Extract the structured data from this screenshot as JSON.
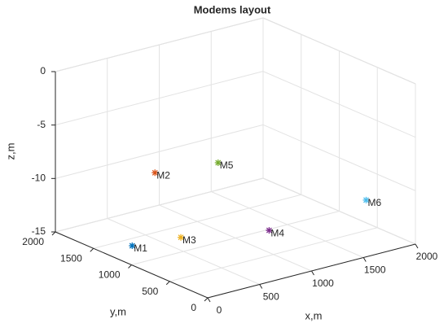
{
  "chart_data": {
    "type": "scatter3d",
    "title": "Modems layout",
    "xlabel": "x,m",
    "ylabel": "y,m",
    "zlabel": "z,m",
    "xlim": [
      0,
      2000
    ],
    "ylim": [
      0,
      2000
    ],
    "zlim": [
      -15,
      0
    ],
    "xticks": [
      0,
      500,
      1000,
      1500,
      2000
    ],
    "yticks": [
      0,
      500,
      1000,
      1500,
      2000
    ],
    "zticks": [
      -15,
      -10,
      -5,
      0
    ],
    "grid": true,
    "series": [
      {
        "name": "M1",
        "color": "#0072BD",
        "x": [
          270
        ],
        "y": [
          1360
        ],
        "z": [
          -15
        ]
      },
      {
        "name": "M2",
        "color": "#D95319",
        "x": [
          680
        ],
        "y": [
          1620
        ],
        "z": [
          -10
        ]
      },
      {
        "name": "M3",
        "color": "#EDB120",
        "x": [
          680
        ],
        "y": [
          1280
        ],
        "z": [
          -15
        ]
      },
      {
        "name": "M4",
        "color": "#7E2F8E",
        "x": [
          1310
        ],
        "y": [
          980
        ],
        "z": [
          -15
        ]
      },
      {
        "name": "M5",
        "color": "#77AC30",
        "x": [
          1200
        ],
        "y": [
          1500
        ],
        "z": [
          -10
        ]
      },
      {
        "name": "M6",
        "color": "#4DBEEE",
        "x": [
          1870
        ],
        "y": [
          470
        ],
        "z": [
          -12
        ]
      }
    ]
  }
}
